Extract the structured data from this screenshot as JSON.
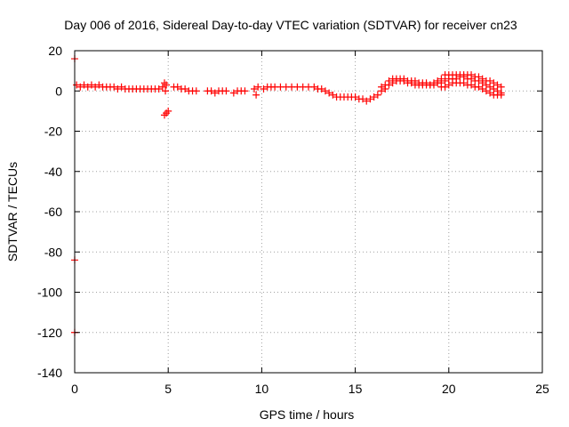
{
  "chart_data": {
    "type": "scatter",
    "title": "Day 006 of 2016, Sidereal Day-to-day VTEC variation (SDTVAR) for receiver cn23",
    "xlabel": "GPS time / hours",
    "ylabel": "SDTVAR / TECUs",
    "xlim": [
      0,
      25
    ],
    "ylim": [
      -140,
      20
    ],
    "xticks": [
      "0",
      "5",
      "10",
      "15",
      "20",
      "25"
    ],
    "yticks": [
      "20",
      "0",
      "-20",
      "-40",
      "-60",
      "-80",
      "-100",
      "-120",
      "-140"
    ],
    "grid": true,
    "legend": "none",
    "series": [
      {
        "color": "#ff0000",
        "marker": "plus",
        "points": [
          [
            0.0,
            16
          ],
          [
            0.0,
            -84
          ],
          [
            0.0,
            -120
          ],
          [
            0.1,
            3
          ],
          [
            0.3,
            2
          ],
          [
            0.5,
            3
          ],
          [
            0.7,
            2
          ],
          [
            0.9,
            3
          ],
          [
            1.1,
            2
          ],
          [
            1.3,
            3
          ],
          [
            1.5,
            2
          ],
          [
            1.7,
            2
          ],
          [
            1.9,
            2
          ],
          [
            2.1,
            2
          ],
          [
            2.3,
            1
          ],
          [
            2.5,
            2
          ],
          [
            2.7,
            1
          ],
          [
            2.9,
            1
          ],
          [
            3.1,
            1
          ],
          [
            3.3,
            1
          ],
          [
            3.5,
            1
          ],
          [
            3.7,
            1
          ],
          [
            3.9,
            1
          ],
          [
            4.1,
            1
          ],
          [
            4.3,
            1
          ],
          [
            4.5,
            1
          ],
          [
            4.7,
            2
          ],
          [
            4.8,
            4
          ],
          [
            4.85,
            0
          ],
          [
            4.9,
            3
          ],
          [
            4.8,
            -12
          ],
          [
            4.9,
            -11
          ],
          [
            5.0,
            -10
          ],
          [
            5.3,
            2
          ],
          [
            5.5,
            2
          ],
          [
            5.7,
            1
          ],
          [
            5.9,
            1
          ],
          [
            6.1,
            0
          ],
          [
            6.3,
            0
          ],
          [
            6.5,
            0
          ],
          [
            7.1,
            0
          ],
          [
            7.3,
            0
          ],
          [
            7.5,
            -1
          ],
          [
            7.7,
            0
          ],
          [
            7.9,
            0
          ],
          [
            8.1,
            0
          ],
          [
            8.5,
            -1
          ],
          [
            8.7,
            0
          ],
          [
            8.9,
            0
          ],
          [
            9.1,
            0
          ],
          [
            9.6,
            1
          ],
          [
            9.7,
            -2
          ],
          [
            9.8,
            2
          ],
          [
            10.1,
            1
          ],
          [
            10.3,
            2
          ],
          [
            10.5,
            2
          ],
          [
            10.7,
            2
          ],
          [
            11.0,
            2
          ],
          [
            11.3,
            2
          ],
          [
            11.6,
            2
          ],
          [
            11.9,
            2
          ],
          [
            12.2,
            2
          ],
          [
            12.5,
            2
          ],
          [
            12.8,
            2
          ],
          [
            13.0,
            1
          ],
          [
            13.2,
            1
          ],
          [
            13.4,
            0
          ],
          [
            13.6,
            -1
          ],
          [
            13.8,
            -2
          ],
          [
            14.0,
            -3
          ],
          [
            14.2,
            -3
          ],
          [
            14.4,
            -3
          ],
          [
            14.6,
            -3
          ],
          [
            14.8,
            -3
          ],
          [
            15.0,
            -3
          ],
          [
            15.2,
            -4
          ],
          [
            15.4,
            -4
          ],
          [
            15.6,
            -5
          ],
          [
            15.8,
            -4
          ],
          [
            16.0,
            -3
          ],
          [
            16.2,
            -2
          ],
          [
            16.4,
            0
          ],
          [
            16.6,
            1
          ],
          [
            16.8,
            3
          ],
          [
            17.0,
            4
          ],
          [
            17.2,
            5
          ],
          [
            17.4,
            6
          ],
          [
            17.6,
            6
          ],
          [
            17.8,
            5
          ],
          [
            18.0,
            5
          ],
          [
            18.2,
            5
          ],
          [
            18.4,
            4
          ],
          [
            18.6,
            4
          ],
          [
            18.8,
            4
          ],
          [
            19.0,
            3
          ],
          [
            19.2,
            3
          ],
          [
            19.4,
            4
          ],
          [
            19.6,
            4
          ],
          [
            19.8,
            5
          ],
          [
            20.0,
            6
          ],
          [
            20.2,
            6
          ],
          [
            20.4,
            6
          ],
          [
            20.6,
            7
          ],
          [
            20.8,
            7
          ],
          [
            21.0,
            6
          ],
          [
            21.2,
            6
          ],
          [
            21.4,
            5
          ],
          [
            21.6,
            5
          ],
          [
            21.8,
            4
          ],
          [
            22.0,
            3
          ],
          [
            22.2,
            2
          ],
          [
            22.4,
            1
          ],
          [
            22.6,
            0
          ],
          [
            22.8,
            -1
          ]
        ],
        "points_alt": [
          [
            16.4,
            2
          ],
          [
            16.6,
            3
          ],
          [
            16.8,
            5
          ],
          [
            17.0,
            6
          ],
          [
            17.2,
            6
          ],
          [
            17.4,
            5
          ],
          [
            17.6,
            5
          ],
          [
            17.8,
            4
          ],
          [
            18.0,
            4
          ],
          [
            18.2,
            3
          ],
          [
            18.4,
            3
          ],
          [
            18.6,
            3
          ],
          [
            18.8,
            3
          ],
          [
            19.0,
            3
          ],
          [
            19.2,
            4
          ],
          [
            19.4,
            5
          ],
          [
            19.6,
            6
          ],
          [
            19.8,
            8
          ],
          [
            20.0,
            8
          ],
          [
            20.2,
            8
          ],
          [
            20.4,
            8
          ],
          [
            20.6,
            8
          ],
          [
            20.8,
            8
          ],
          [
            21.0,
            8
          ],
          [
            21.2,
            8
          ],
          [
            21.4,
            7
          ],
          [
            21.6,
            7
          ],
          [
            21.8,
            6
          ],
          [
            22.0,
            5
          ],
          [
            22.2,
            5
          ],
          [
            22.4,
            4
          ],
          [
            22.6,
            3
          ],
          [
            22.8,
            2
          ],
          [
            19.6,
            2
          ],
          [
            19.8,
            2
          ],
          [
            20.0,
            3
          ],
          [
            20.2,
            4
          ],
          [
            20.4,
            4
          ],
          [
            20.6,
            4
          ],
          [
            20.8,
            4
          ],
          [
            21.0,
            3
          ],
          [
            21.2,
            3
          ],
          [
            21.4,
            2
          ],
          [
            21.6,
            2
          ],
          [
            21.8,
            1
          ],
          [
            22.0,
            0
          ],
          [
            22.2,
            -1
          ],
          [
            22.4,
            -2
          ],
          [
            22.6,
            -2
          ],
          [
            22.8,
            -2
          ]
        ]
      }
    ]
  }
}
